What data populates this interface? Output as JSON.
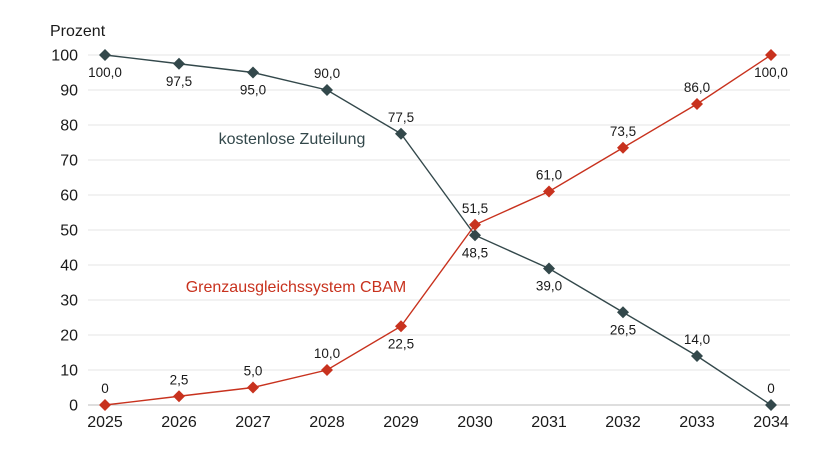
{
  "chart_data": {
    "type": "line",
    "ylabel": "Prozent",
    "ylim": [
      0,
      100
    ],
    "yticks": [
      0,
      10,
      20,
      30,
      40,
      50,
      60,
      70,
      80,
      90,
      100
    ],
    "x": [
      "2025",
      "2026",
      "2027",
      "2028",
      "2029",
      "2030",
      "2031",
      "2032",
      "2033",
      "2034"
    ],
    "grid": true,
    "series": [
      {
        "name": "kostenlose Zuteilung",
        "color": "#33484b",
        "marker": "diamond",
        "values": [
          100.0,
          97.5,
          95.0,
          90.0,
          77.5,
          48.5,
          39.0,
          26.5,
          14.0,
          0
        ],
        "labels": [
          "100,0",
          "97,5",
          "95,0",
          "90,0",
          "77,5",
          "48,5",
          "39,0",
          "26,5",
          "14,0",
          "0"
        ]
      },
      {
        "name": "Grenzausgleichssystem CBAM",
        "color": "#c8321e",
        "marker": "diamond",
        "values": [
          0,
          2.5,
          5.0,
          10.0,
          22.5,
          51.5,
          61.0,
          73.5,
          86.0,
          100.0
        ],
        "labels": [
          "0",
          "2,5",
          "5,0",
          "10,0",
          "22,5",
          "51,5",
          "61,0",
          "73,5",
          "86,0",
          "100,0"
        ]
      }
    ]
  }
}
